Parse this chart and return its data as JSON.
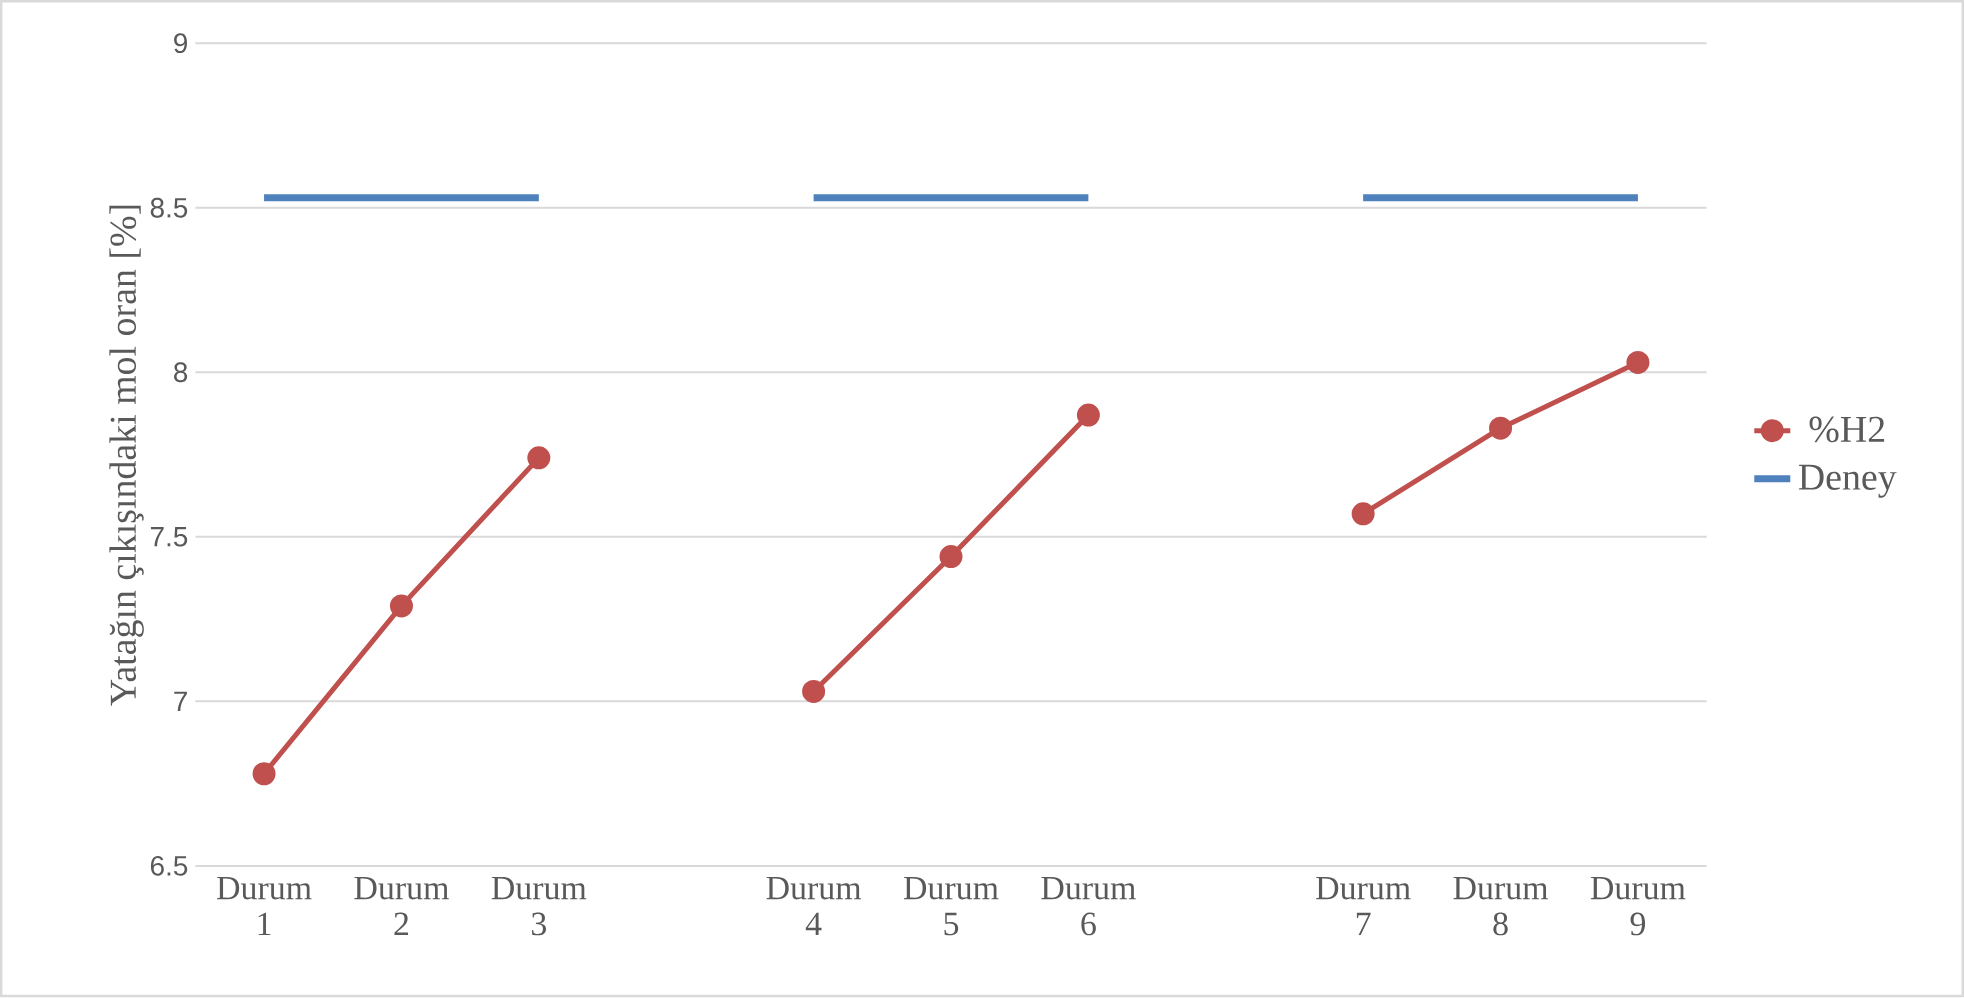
{
  "chart_data": {
    "type": "line",
    "ylabel": "Yatağın çıkışındaki mol oran [%]",
    "categories": [
      "Durum 1",
      "Durum 2",
      "Durum 3",
      null,
      "Durum 4",
      "Durum 5",
      "Durum 6",
      null,
      "Durum 7",
      "Durum 8",
      "Durum 9"
    ],
    "series": [
      {
        "name": "%H2",
        "color": "#c0504d",
        "marker": "circle",
        "values": [
          6.78,
          7.29,
          7.74,
          null,
          7.03,
          7.44,
          7.87,
          null,
          7.57,
          7.83,
          8.03
        ]
      },
      {
        "name": "Deney",
        "color": "#4f81bd",
        "marker": "none",
        "values": [
          8.53,
          8.53,
          8.53,
          null,
          8.53,
          8.53,
          8.53,
          null,
          8.53,
          8.53,
          8.53
        ]
      }
    ],
    "ylim": [
      6.5,
      9
    ],
    "yticks": [
      6.5,
      7,
      7.5,
      8,
      8.5,
      9
    ],
    "grid": "y",
    "legend": "right"
  }
}
